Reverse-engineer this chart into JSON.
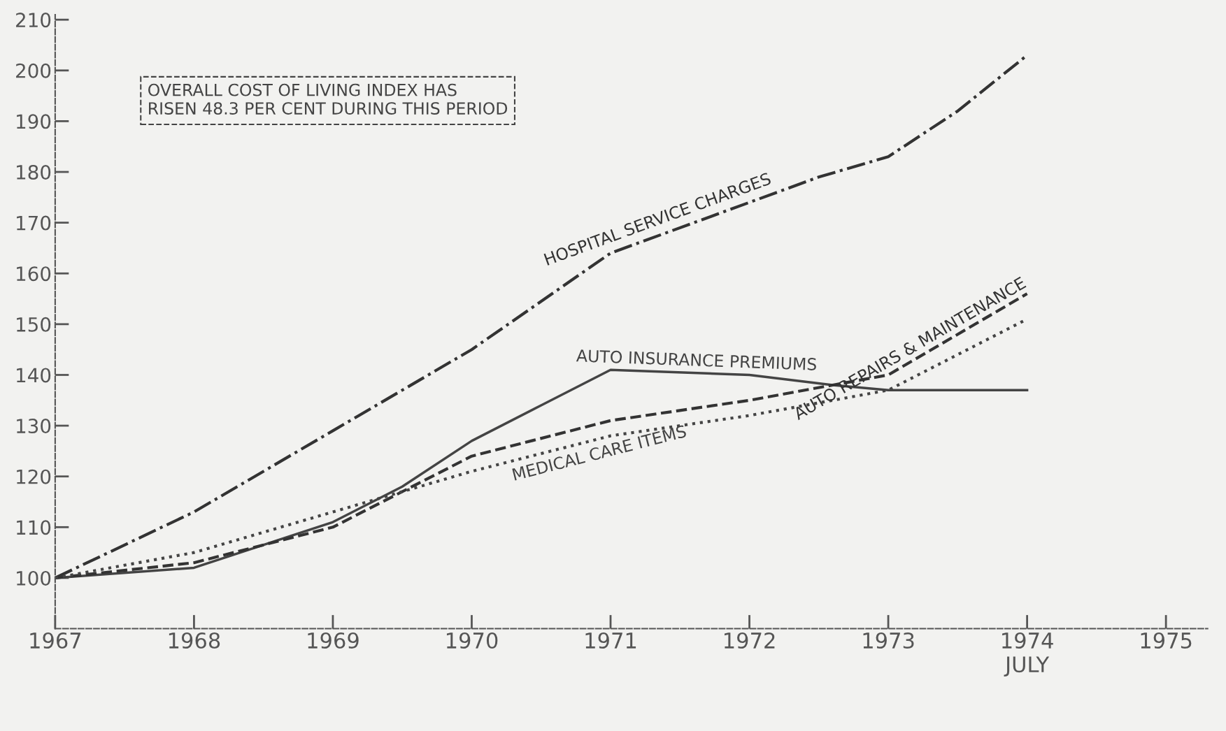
{
  "chart_data": {
    "type": "line",
    "annotations": [
      "OVERALL COST OF LIVING INDEX HAS\nRISEN 48.3 PER CENT DURING THIS PERIOD"
    ],
    "xlim": [
      1967,
      1975.3
    ],
    "ylim": [
      90,
      211
    ],
    "xticks": [
      1967,
      1968,
      1969,
      1970,
      1971,
      1972,
      1973,
      {
        "value": 1974,
        "label": "1974\nJULY"
      },
      1975
    ],
    "yticks": [
      100,
      110,
      120,
      130,
      140,
      150,
      160,
      170,
      180,
      190,
      200,
      210
    ],
    "grid": false,
    "legend": false,
    "marker": "none",
    "series": [
      {
        "name": "HOSPITAL SERVICE CHARGES",
        "color": "#333333",
        "line_style": "dashdot",
        "x": [
          1967,
          1968,
          1969,
          1970,
          1971,
          1972,
          1972.5,
          1973,
          1973.5,
          1974
        ],
        "values": [
          100,
          113,
          129,
          145,
          164,
          174,
          179,
          183,
          192,
          203
        ]
      },
      {
        "name": "AUTO INSURANCE PREMIUMS",
        "color": "#444444",
        "line_style": "solid",
        "x": [
          1967,
          1968,
          1969,
          1969.5,
          1970,
          1970.5,
          1971,
          1972,
          1972.6,
          1973,
          1974
        ],
        "values": [
          100,
          102,
          111,
          118,
          127,
          134,
          141,
          140,
          138,
          137,
          137
        ]
      },
      {
        "name": "AUTO REPAIRS & MAINTENANCE",
        "color": "#333333",
        "line_style": "dashed",
        "x": [
          1967,
          1968,
          1969,
          1970,
          1971,
          1972,
          1972.6,
          1973,
          1974
        ],
        "values": [
          100,
          103,
          110,
          124,
          131,
          135,
          138,
          140,
          156
        ]
      },
      {
        "name": "MEDICAL CARE ITEMS",
        "color": "#444444",
        "line_style": "dotted",
        "x": [
          1967,
          1968,
          1969,
          1969.5,
          1970,
          1971,
          1972,
          1972.6,
          1973,
          1974
        ],
        "values": [
          100,
          105,
          113,
          117,
          121,
          128,
          132,
          135,
          137,
          151
        ]
      }
    ]
  }
}
